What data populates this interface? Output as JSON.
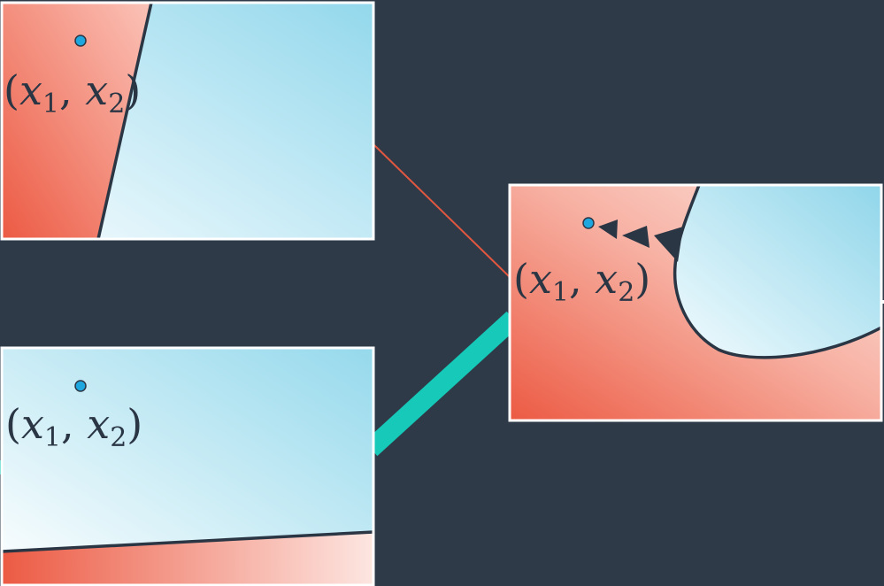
{
  "colors": {
    "background": "#2e3a48",
    "class_red": "#ec5a43",
    "class_red_light": "#fde3de",
    "class_blue": "#8fd6ea",
    "class_blue_light": "#f2fbfe",
    "boundary": "#2b3645",
    "point": "#1ea7df",
    "weak_connection": "#e2573f",
    "strong_connection": "#16c9b8",
    "frame": "#ffffff"
  },
  "panels": {
    "top_left": {
      "label_prefix": "(",
      "var1": "x",
      "sub1": "1",
      "sep": ", ",
      "var2": "x",
      "sub2": "2",
      "label_suffix": ")"
    },
    "bottom_left": {
      "label_prefix": "(",
      "var1": "x",
      "sub1": "1",
      "sep": ", ",
      "var2": "x",
      "sub2": "2",
      "label_suffix": ")"
    },
    "right": {
      "label_prefix": "(",
      "var1": "x",
      "sub1": "1",
      "sep": ", ",
      "var2": "x",
      "sub2": "2",
      "label_suffix": ")",
      "arrow_count": 3
    }
  }
}
